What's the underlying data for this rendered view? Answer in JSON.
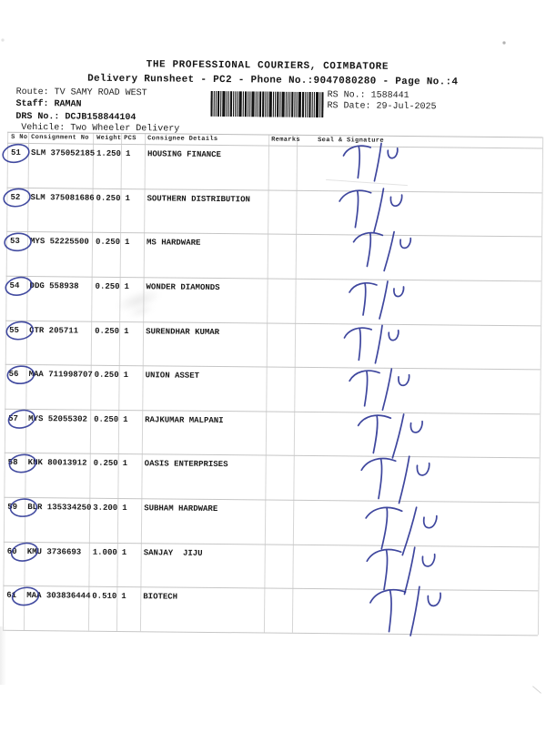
{
  "document": {
    "title": "THE PROFESSIONAL COURIERS, COIMBATORE",
    "subtitle": "Delivery Runsheet - PC2 - Phone No.:9047080280 - Page No.:4",
    "route_label": "Route:",
    "route_value": "TV SAMY ROAD WEST",
    "staff_label": "Staff:",
    "staff_value": "RAMAN",
    "drs_label": "DRS No.:",
    "drs_value": "DCJB158844104",
    "vehicle_label": "Vehicle:",
    "vehicle_value": "Two Wheeler Delivery",
    "rs_no_label": "RS No.:",
    "rs_no_value": "1588441",
    "rs_date_label": "RS Date:",
    "rs_date_value": "29-Jul-2025"
  },
  "table": {
    "headers": [
      "S No",
      "Consignment No",
      "Weight",
      "PCS",
      "Consignee Details",
      "Remarks",
      "Seal & Signature"
    ],
    "rows": [
      {
        "s_no": "51",
        "consignment_no": "SLM 375052185",
        "weight": "1.250",
        "pcs": "1",
        "consignee": "HOUSING FINANCE",
        "remarks": "",
        "signature": "T/U",
        "serial_circled": true
      },
      {
        "s_no": "52",
        "consignment_no": "SLM 375081686",
        "weight": "0.250",
        "pcs": "1",
        "consignee": "SOUTHERN DISTRIBUTION",
        "remarks": "",
        "signature": "T/U",
        "serial_circled": true
      },
      {
        "s_no": "53",
        "consignment_no": "MYS 52225500",
        "weight": "0.250",
        "pcs": "1",
        "consignee": "MS HARDWARE",
        "remarks": "",
        "signature": "T/U",
        "serial_circled": true
      },
      {
        "s_no": "54",
        "consignment_no": "DDG 558938",
        "weight": "0.250",
        "pcs": "1",
        "consignee": "WONDER DIAMONDS",
        "remarks": "",
        "signature": "T/U",
        "serial_circled": true
      },
      {
        "s_no": "55",
        "consignment_no": "CTR 205711",
        "weight": "0.250",
        "pcs": "1",
        "consignee": "SURENDHAR KUMAR",
        "remarks": "",
        "signature": "T/U",
        "serial_circled": true
      },
      {
        "s_no": "56",
        "consignment_no": "MAA 711998707",
        "weight": "0.250",
        "pcs": "1",
        "consignee": "UNION ASSET",
        "remarks": "",
        "signature": "T/U",
        "serial_circled": true
      },
      {
        "s_no": "57",
        "consignment_no": "MYS 52055302",
        "weight": "0.250",
        "pcs": "1",
        "consignee": "RAJKUMAR MALPANI",
        "remarks": "",
        "signature": "T/U",
        "serial_circled": true
      },
      {
        "s_no": "58",
        "consignment_no": "KNK 80013912",
        "weight": "0.250",
        "pcs": "1",
        "consignee": "OASIS ENTERPRISES",
        "remarks": "",
        "signature": "T/U",
        "serial_circled": true
      },
      {
        "s_no": "59",
        "consignment_no": "BLR 135334250",
        "weight": "3.200",
        "pcs": "1",
        "consignee": "SUBHAM HARDWARE",
        "remarks": "",
        "signature": "T/U",
        "serial_circled": true
      },
      {
        "s_no": "60",
        "consignment_no": "KMU 3736693",
        "weight": "1.000",
        "pcs": "1",
        "consignee": "SANJAY  JIJU",
        "remarks": "",
        "signature": "T/U",
        "serial_circled": true
      },
      {
        "s_no": "61",
        "consignment_no": "MAA 303836444",
        "weight": "0.510",
        "pcs": "1",
        "consignee": "BIOTECH",
        "remarks": "",
        "signature": "T/U",
        "serial_circled": true
      }
    ]
  },
  "annotations": {
    "pen_color": "#2e3796",
    "signature_mark_text": "T/U",
    "serial_mark": "blue-ink circle around each serial number"
  },
  "barcode": {
    "present": true,
    "label": "runsheet-barcode"
  }
}
